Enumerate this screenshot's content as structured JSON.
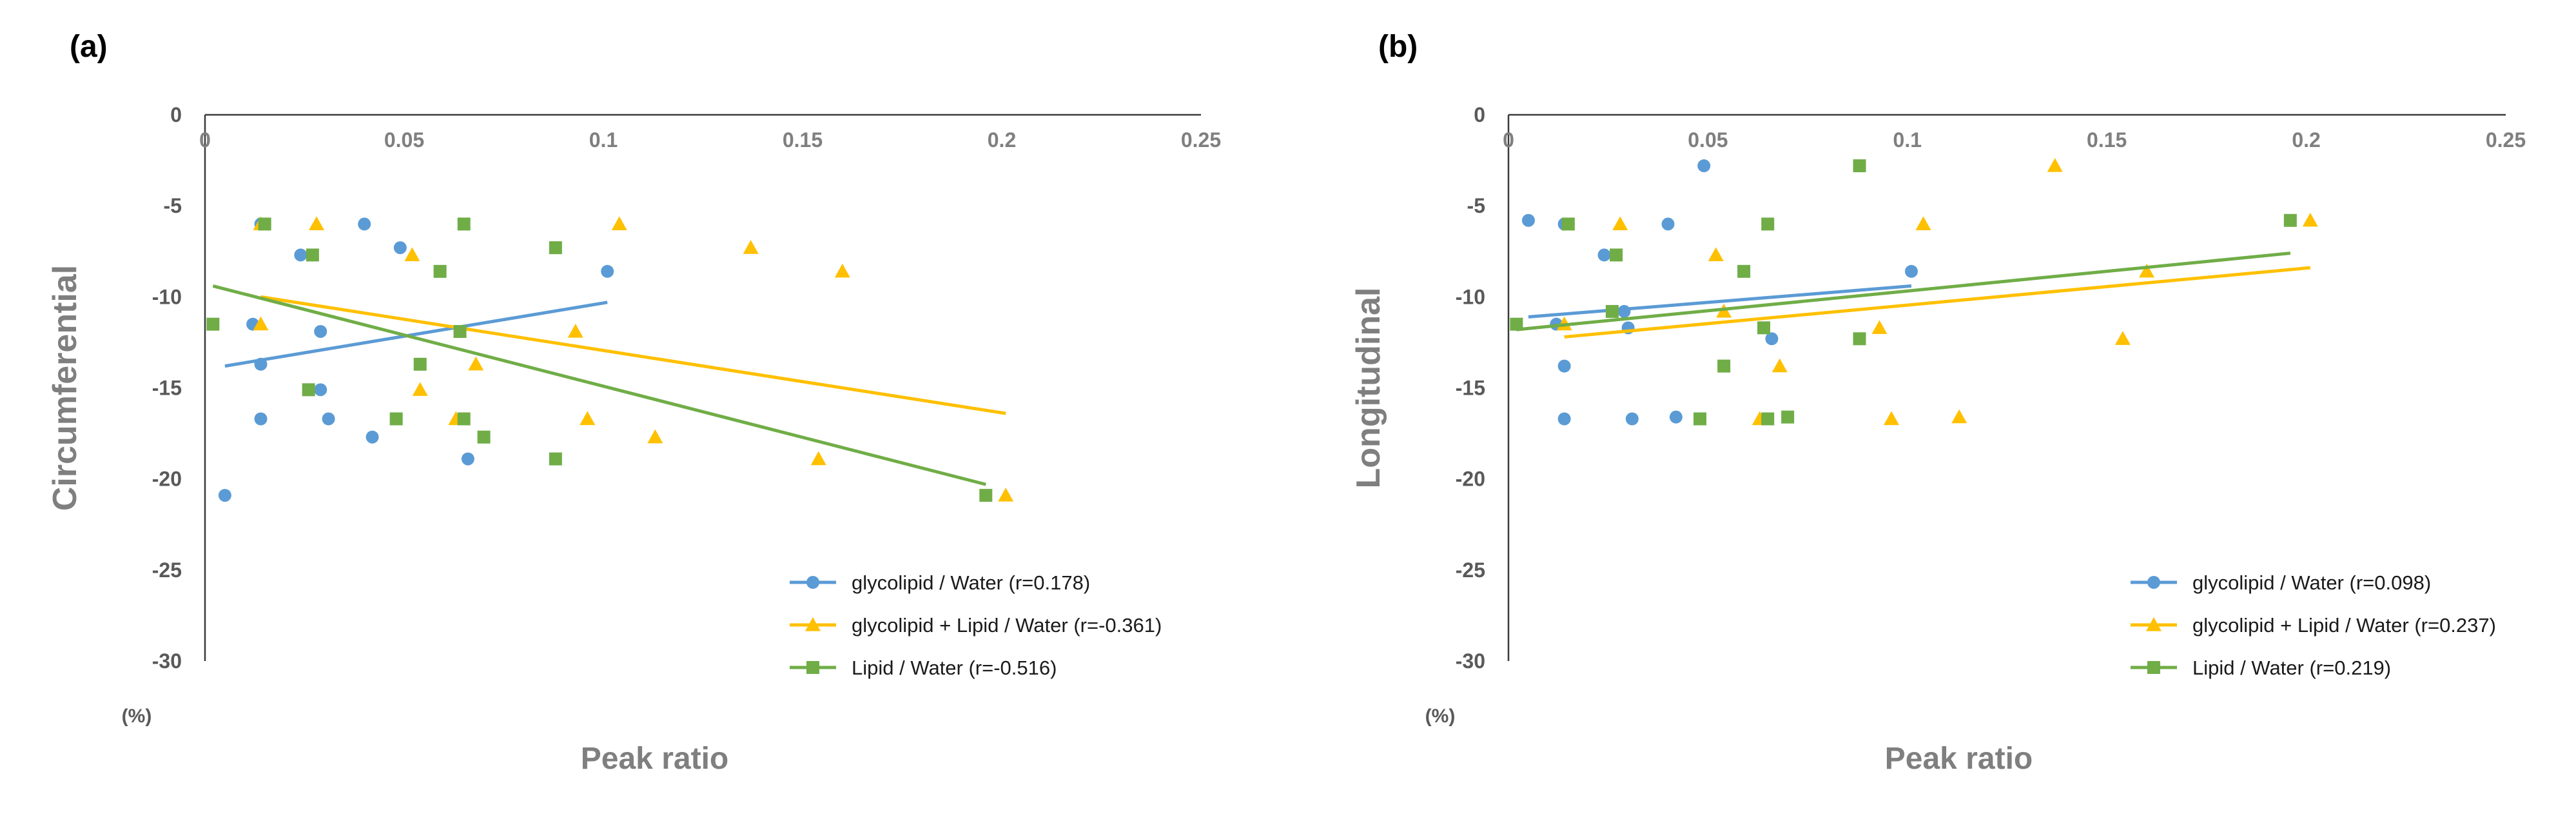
{
  "chart_data": [
    {
      "panel": "(a)",
      "type": "scatter",
      "xlabel": "Peak ratio",
      "ylabel": "Circumferential",
      "unit": "(%)",
      "xlim": [
        0,
        0.25
      ],
      "ylim": [
        -30,
        0
      ],
      "xticks": [
        0,
        0.05,
        0.1,
        0.15,
        0.2,
        0.25
      ],
      "xtick_labels": [
        "0",
        "0.05",
        "0.1",
        "0.15",
        "0.2",
        "0.25"
      ],
      "yticks": [
        0,
        -5,
        -10,
        -15,
        -20,
        -25,
        -30
      ],
      "ytick_labels": [
        "0",
        "-5",
        "-10",
        "-15",
        "-20",
        "-25",
        "-30"
      ],
      "series": [
        {
          "name": "glycolipid / Water (r=0.178)",
          "marker": "circle",
          "color": "#5B9BD5",
          "points": [
            [
              0.014,
              -6.0
            ],
            [
              0.04,
              -6.0
            ],
            [
              0.049,
              -7.3
            ],
            [
              0.024,
              -7.7
            ],
            [
              0.101,
              -8.6
            ],
            [
              0.012,
              -11.5
            ],
            [
              0.029,
              -11.9
            ],
            [
              0.014,
              -13.7
            ],
            [
              0.029,
              -15.1
            ],
            [
              0.014,
              -16.7
            ],
            [
              0.031,
              -16.7
            ],
            [
              0.042,
              -17.7
            ],
            [
              0.066,
              -18.9
            ],
            [
              0.005,
              -20.9
            ]
          ],
          "trendline": [
            [
              0.005,
              -13.8
            ],
            [
              0.101,
              -10.3
            ]
          ]
        },
        {
          "name": "glycolipid + Lipid / Water (r=-0.361)",
          "marker": "triangle",
          "color": "#FFC000",
          "points": [
            [
              0.014,
              -6.0
            ],
            [
              0.028,
              -6.0
            ],
            [
              0.104,
              -6.0
            ],
            [
              0.137,
              -7.3
            ],
            [
              0.052,
              -7.7
            ],
            [
              0.16,
              -8.6
            ],
            [
              0.014,
              -11.5
            ],
            [
              0.093,
              -11.9
            ],
            [
              0.068,
              -13.7
            ],
            [
              0.054,
              -15.1
            ],
            [
              0.096,
              -16.7
            ],
            [
              0.063,
              -16.7
            ],
            [
              0.113,
              -17.7
            ],
            [
              0.154,
              -18.9
            ],
            [
              0.201,
              -20.9
            ]
          ],
          "trendline": [
            [
              0.014,
              -10.0
            ],
            [
              0.201,
              -16.4
            ]
          ]
        },
        {
          "name": "Lipid / Water (r=-0.516)",
          "marker": "square",
          "color": "#70AD47",
          "points": [
            [
              0.015,
              -6.0
            ],
            [
              0.065,
              -6.0
            ],
            [
              0.088,
              -7.3
            ],
            [
              0.027,
              -7.7
            ],
            [
              0.059,
              -8.6
            ],
            [
              0.002,
              -11.5
            ],
            [
              0.064,
              -11.9
            ],
            [
              0.054,
              -13.7
            ],
            [
              0.026,
              -15.1
            ],
            [
              0.048,
              -16.7
            ],
            [
              0.065,
              -16.7
            ],
            [
              0.07,
              -17.7
            ],
            [
              0.088,
              -18.9
            ],
            [
              0.196,
              -20.9
            ]
          ],
          "trendline": [
            [
              0.002,
              -9.4
            ],
            [
              0.196,
              -20.3
            ]
          ]
        }
      ]
    },
    {
      "panel": "(b)",
      "type": "scatter",
      "xlabel": "Peak ratio",
      "ylabel": "Longitudinal",
      "unit": "(%)",
      "xlim": [
        0,
        0.25
      ],
      "ylim": [
        -30,
        0
      ],
      "xticks": [
        0,
        0.05,
        0.1,
        0.15,
        0.2,
        0.25
      ],
      "xtick_labels": [
        "0",
        "0.05",
        "0.1",
        "0.15",
        "0.2",
        "0.25"
      ],
      "yticks": [
        0,
        -5,
        -10,
        -15,
        -20,
        -25,
        -30
      ],
      "ytick_labels": [
        "0",
        "-5",
        "-10",
        "-15",
        "-20",
        "-25",
        "-30"
      ],
      "series": [
        {
          "name": "glycolipid / Water (r=0.098)",
          "marker": "circle",
          "color": "#5B9BD5",
          "points": [
            [
              0.049,
              -2.8
            ],
            [
              0.005,
              -5.8
            ],
            [
              0.014,
              -6.0
            ],
            [
              0.04,
              -6.0
            ],
            [
              0.024,
              -7.7
            ],
            [
              0.101,
              -8.6
            ],
            [
              0.029,
              -10.8
            ],
            [
              0.012,
              -11.5
            ],
            [
              0.03,
              -11.7
            ],
            [
              0.066,
              -12.3
            ],
            [
              0.014,
              -13.8
            ],
            [
              0.014,
              -16.7
            ],
            [
              0.031,
              -16.7
            ],
            [
              0.042,
              -16.6
            ]
          ],
          "trendline": [
            [
              0.005,
              -11.1
            ],
            [
              0.101,
              -9.4
            ]
          ]
        },
        {
          "name": "glycolipid + Lipid / Water (r=0.237)",
          "marker": "triangle",
          "color": "#FFC000",
          "points": [
            [
              0.137,
              -2.8
            ],
            [
              0.201,
              -5.8
            ],
            [
              0.028,
              -6.0
            ],
            [
              0.104,
              -6.0
            ],
            [
              0.052,
              -7.7
            ],
            [
              0.16,
              -8.6
            ],
            [
              0.054,
              -10.8
            ],
            [
              0.014,
              -11.5
            ],
            [
              0.093,
              -11.7
            ],
            [
              0.154,
              -12.3
            ],
            [
              0.068,
              -13.8
            ],
            [
              0.096,
              -16.7
            ],
            [
              0.063,
              -16.7
            ],
            [
              0.113,
              -16.6
            ]
          ],
          "trendline": [
            [
              0.014,
              -12.2
            ],
            [
              0.201,
              -8.4
            ]
          ]
        },
        {
          "name": "Lipid / Water (r=0.219)",
          "marker": "square",
          "color": "#70AD47",
          "points": [
            [
              0.088,
              -2.8
            ],
            [
              0.196,
              -5.8
            ],
            [
              0.015,
              -6.0
            ],
            [
              0.065,
              -6.0
            ],
            [
              0.027,
              -7.7
            ],
            [
              0.059,
              -8.6
            ],
            [
              0.026,
              -10.8
            ],
            [
              0.002,
              -11.5
            ],
            [
              0.064,
              -11.7
            ],
            [
              0.088,
              -12.3
            ],
            [
              0.054,
              -13.8
            ],
            [
              0.048,
              -16.7
            ],
            [
              0.065,
              -16.7
            ],
            [
              0.07,
              -16.6
            ]
          ],
          "trendline": [
            [
              0.002,
              -11.8
            ],
            [
              0.196,
              -7.6
            ]
          ]
        }
      ]
    }
  ]
}
